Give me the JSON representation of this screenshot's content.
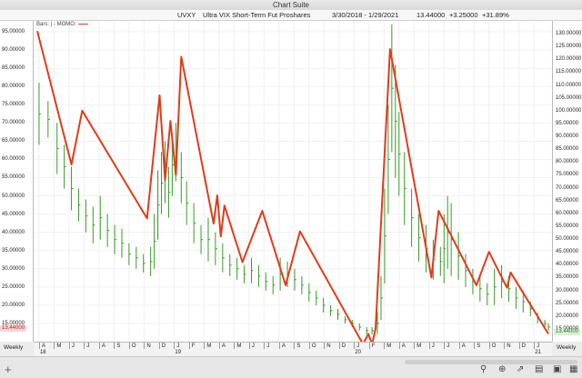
{
  "window_title": "Chart Suite",
  "info": {
    "symbol": "UVXY",
    "name": "Ultra VIX Short-Term Fut Proshares",
    "range": "3/30/2018 - 1/29/2021",
    "last": "13.44000",
    "change": "+3.25000",
    "pct": "+31.89%"
  },
  "legend": {
    "bars": "Bars:",
    "momo": "MOMO:"
  },
  "left_ticks": [
    "95.00000",
    "90.00000",
    "85.00000",
    "80.00000",
    "75.00000",
    "70.00000",
    "65.00000",
    "60.00000",
    "55.00000",
    "50.00000",
    "45.00000",
    "40.00000",
    "35.00000",
    "30.00000",
    "25.00000",
    "20.00000",
    "15.00000"
  ],
  "right_ticks": [
    "130.00000",
    "125.00000",
    "120.00000",
    "115.00000",
    "110.00000",
    "105.00000",
    "100.00000",
    "95.00000",
    "90.00000",
    "85.00000",
    "80.00000",
    "75.00000",
    "70.00000",
    "65.00000",
    "60.00000",
    "55.00000",
    "50.00000",
    "45.00000",
    "40.00000",
    "35.00000",
    "30.00000",
    "25.00000",
    "20.00000",
    "15.00000"
  ],
  "left_price_badge": "13.44000",
  "right_price_badge": "13.44000",
  "x_months": [
    "A",
    "M",
    "J",
    "J",
    "A",
    "S",
    "O",
    "N",
    "D",
    "J",
    "F",
    "M",
    "A",
    "M",
    "J",
    "J",
    "A",
    "S",
    "O",
    "N",
    "D",
    "J",
    "F",
    "M",
    "A",
    "M",
    "J",
    "J",
    "A",
    "S",
    "O",
    "N",
    "D",
    "J"
  ],
  "x_years": [
    "18",
    "19",
    "20",
    "21"
  ],
  "weekly_label": "Weekly",
  "colors": {
    "bars": "#3a9a2a",
    "momo": "#e03c1c",
    "badge_left": "#d03030",
    "badge_right": "#2a8a2a"
  },
  "chart_data": {
    "type": "line",
    "title": "",
    "series": [
      {
        "name": "Bars",
        "kind": "ohlc",
        "note_units": "left axis price",
        "points": [
          [
            2018.25,
            64,
            81
          ],
          [
            2018.3,
            66,
            76
          ],
          [
            2018.35,
            56,
            70
          ],
          [
            2018.39,
            52,
            64
          ],
          [
            2018.43,
            46,
            58
          ],
          [
            2018.47,
            43,
            52
          ],
          [
            2018.51,
            40,
            49
          ],
          [
            2018.55,
            37,
            47
          ],
          [
            2018.59,
            38,
            50
          ],
          [
            2018.63,
            36,
            45
          ],
          [
            2018.67,
            34,
            42
          ],
          [
            2018.71,
            33,
            41
          ],
          [
            2018.75,
            31,
            37
          ],
          [
            2018.79,
            30,
            36
          ],
          [
            2018.83,
            29,
            34
          ],
          [
            2018.87,
            28,
            36
          ],
          [
            2018.89,
            30,
            45
          ],
          [
            2018.91,
            38,
            57
          ],
          [
            2018.93,
            45,
            62
          ],
          [
            2018.95,
            48,
            65
          ],
          [
            2018.97,
            44,
            58
          ],
          [
            2018.99,
            50,
            67
          ],
          [
            2019.01,
            54,
            70
          ],
          [
            2019.04,
            48,
            62
          ],
          [
            2019.07,
            42,
            54
          ],
          [
            2019.11,
            37,
            48
          ],
          [
            2019.15,
            34,
            42
          ],
          [
            2019.19,
            32,
            44
          ],
          [
            2019.23,
            31,
            40
          ],
          [
            2019.27,
            29,
            37
          ],
          [
            2019.31,
            28,
            34
          ],
          [
            2019.35,
            27,
            33
          ],
          [
            2019.39,
            26,
            31
          ],
          [
            2019.43,
            26,
            33
          ],
          [
            2019.47,
            25,
            31
          ],
          [
            2019.51,
            24,
            29
          ],
          [
            2019.55,
            23,
            28
          ],
          [
            2019.59,
            24,
            33
          ],
          [
            2019.63,
            25,
            32
          ],
          [
            2019.67,
            24,
            30
          ],
          [
            2019.71,
            23,
            28
          ],
          [
            2019.75,
            21,
            26
          ],
          [
            2019.79,
            20,
            24
          ],
          [
            2019.83,
            18,
            22
          ],
          [
            2019.87,
            17,
            20
          ],
          [
            2019.91,
            16,
            19
          ],
          [
            2019.95,
            15,
            17
          ],
          [
            2019.99,
            14,
            16
          ],
          [
            2020.03,
            13,
            15
          ],
          [
            2020.07,
            12,
            14
          ],
          [
            2020.1,
            12,
            14
          ],
          [
            2020.13,
            12,
            18
          ],
          [
            2020.15,
            16,
            28
          ],
          [
            2020.17,
            26,
            52
          ],
          [
            2020.19,
            45,
            75
          ],
          [
            2020.21,
            62,
            97
          ],
          [
            2020.23,
            55,
            86
          ],
          [
            2020.25,
            50,
            73
          ],
          [
            2020.28,
            42,
            62
          ],
          [
            2020.32,
            36,
            52
          ],
          [
            2020.36,
            32,
            45
          ],
          [
            2020.4,
            29,
            42
          ],
          [
            2020.44,
            27,
            38
          ],
          [
            2020.48,
            28,
            36
          ],
          [
            2020.5,
            26,
            45
          ],
          [
            2020.52,
            30,
            50
          ],
          [
            2020.54,
            28,
            48
          ],
          [
            2020.58,
            27,
            40
          ],
          [
            2020.62,
            25,
            34
          ],
          [
            2020.66,
            23,
            30
          ],
          [
            2020.7,
            21,
            28
          ],
          [
            2020.74,
            20,
            26
          ],
          [
            2020.78,
            20,
            30
          ],
          [
            2020.82,
            22,
            31
          ],
          [
            2020.86,
            21,
            28
          ],
          [
            2020.9,
            19,
            25
          ],
          [
            2020.94,
            18,
            24
          ],
          [
            2020.98,
            17,
            21
          ],
          [
            2021.02,
            15,
            18
          ],
          [
            2021.06,
            14,
            16
          ],
          [
            2021.08,
            13,
            15
          ]
        ]
      },
      {
        "name": "MOMO",
        "kind": "zigzag",
        "note_units": "right axis value",
        "points": [
          [
            2018.24,
            131
          ],
          [
            2018.43,
            79
          ],
          [
            2018.49,
            100
          ],
          [
            2018.85,
            58
          ],
          [
            2018.92,
            106
          ],
          [
            2018.95,
            73
          ],
          [
            2018.98,
            96
          ],
          [
            2019.01,
            75
          ],
          [
            2019.04,
            121
          ],
          [
            2019.22,
            56
          ],
          [
            2019.24,
            67
          ],
          [
            2019.26,
            51
          ],
          [
            2019.28,
            63
          ],
          [
            2019.38,
            41
          ],
          [
            2019.49,
            61
          ],
          [
            2019.62,
            32
          ],
          [
            2019.7,
            53
          ],
          [
            2020.05,
            9
          ],
          [
            2020.08,
            13
          ],
          [
            2020.1,
            9
          ],
          [
            2020.12,
            15
          ],
          [
            2020.2,
            124
          ],
          [
            2020.43,
            35
          ],
          [
            2020.47,
            61
          ],
          [
            2020.68,
            32
          ],
          [
            2020.75,
            45
          ],
          [
            2020.85,
            31
          ],
          [
            2020.87,
            37
          ],
          [
            2021.08,
            13
          ]
        ]
      }
    ],
    "left_axis_range": [
      10,
      98
    ],
    "right_axis_range": [
      10,
      135
    ],
    "x_range": [
      2018.22,
      2021.1
    ],
    "grid": true,
    "legend": "top-left"
  }
}
